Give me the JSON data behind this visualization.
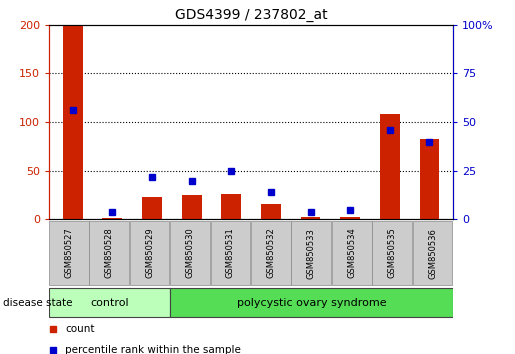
{
  "title": "GDS4399 / 237802_at",
  "samples": [
    "GSM850527",
    "GSM850528",
    "GSM850529",
    "GSM850530",
    "GSM850531",
    "GSM850532",
    "GSM850533",
    "GSM850534",
    "GSM850535",
    "GSM850536"
  ],
  "counts": [
    200,
    2,
    23,
    25,
    26,
    16,
    3,
    3,
    108,
    83
  ],
  "percentiles": [
    56,
    4,
    22,
    20,
    25,
    14,
    4,
    5,
    46,
    40
  ],
  "left_ylim": [
    0,
    200
  ],
  "right_ylim": [
    0,
    100
  ],
  "left_yticks": [
    0,
    50,
    100,
    150,
    200
  ],
  "right_yticks": [
    0,
    25,
    50,
    75,
    100
  ],
  "left_ytick_labels": [
    "0",
    "50",
    "100",
    "150",
    "200"
  ],
  "right_ytick_labels": [
    "0",
    "25",
    "50",
    "75",
    "100%"
  ],
  "grid_values": [
    50,
    100,
    150
  ],
  "bar_color": "#CC2200",
  "marker_color": "#0000CC",
  "control_samples": 3,
  "control_label": "control",
  "pcos_label": "polycystic ovary syndrome",
  "disease_state_label": "disease state",
  "control_bg": "#BBFFBB",
  "pcos_bg": "#55DD55",
  "sample_bg": "#CCCCCC",
  "legend_count_label": "count",
  "legend_pct_label": "percentile rank within the sample",
  "bar_width": 0.5,
  "marker_size": 5
}
